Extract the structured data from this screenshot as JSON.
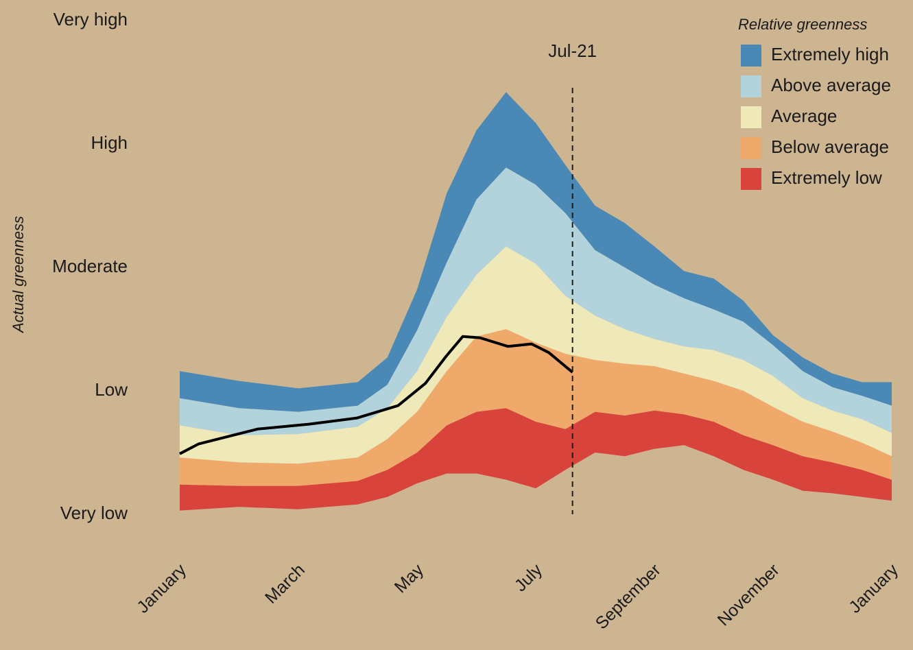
{
  "chart_data": {
    "type": "stacked_band",
    "y_label": "Actual greenness",
    "legend_title": "Relative greenness",
    "xlim": [
      0,
      12
    ],
    "ylim": [
      0,
      4
    ],
    "xticks": [
      {
        "value": 0,
        "label": "January"
      },
      {
        "value": 2,
        "label": "March"
      },
      {
        "value": 4,
        "label": "May"
      },
      {
        "value": 6,
        "label": "July"
      },
      {
        "value": 8,
        "label": "September"
      },
      {
        "value": 10,
        "label": "November"
      },
      {
        "value": 12,
        "label": "January"
      }
    ],
    "yticks": [
      {
        "value": 0,
        "label": "Very low"
      },
      {
        "value": 1,
        "label": "Low"
      },
      {
        "value": 2,
        "label": "Moderate"
      },
      {
        "value": 3,
        "label": "High"
      },
      {
        "value": 4,
        "label": "Very high"
      }
    ],
    "x": [
      0,
      1,
      2,
      3,
      3.5,
      4,
      4.5,
      5,
      5.5,
      6,
      6.5,
      7,
      7.5,
      8,
      8.5,
      9,
      9.5,
      10,
      10.5,
      11,
      11.5,
      12
    ],
    "band_floor": [
      0.03,
      0.06,
      0.04,
      0.08,
      0.14,
      0.25,
      0.33,
      0.33,
      0.28,
      0.21,
      0.36,
      0.5,
      0.47,
      0.53,
      0.56,
      0.47,
      0.36,
      0.28,
      0.19,
      0.17,
      0.14,
      0.11
    ],
    "series": [
      {
        "name": "Extremely low",
        "color": "#d8433c",
        "values": [
          0.21,
          0.17,
          0.19,
          0.19,
          0.22,
          0.25,
          0.39,
          0.5,
          0.58,
          0.54,
          0.33,
          0.33,
          0.33,
          0.31,
          0.25,
          0.28,
          0.28,
          0.28,
          0.28,
          0.25,
          0.22,
          0.17
        ]
      },
      {
        "name": "Below average",
        "color": "#efa96a",
        "values": [
          0.22,
          0.19,
          0.18,
          0.19,
          0.25,
          0.33,
          0.44,
          0.61,
          0.64,
          0.64,
          0.61,
          0.42,
          0.42,
          0.36,
          0.33,
          0.33,
          0.36,
          0.31,
          0.28,
          0.25,
          0.22,
          0.19
        ]
      },
      {
        "name": "Average",
        "color": "#efe8b8",
        "values": [
          0.26,
          0.22,
          0.24,
          0.25,
          0.25,
          0.33,
          0.44,
          0.5,
          0.67,
          0.64,
          0.47,
          0.36,
          0.28,
          0.22,
          0.22,
          0.25,
          0.25,
          0.25,
          0.19,
          0.17,
          0.19,
          0.19
        ]
      },
      {
        "name": "Above average",
        "color": "#b3d3dc",
        "values": [
          0.22,
          0.22,
          0.18,
          0.17,
          0.19,
          0.33,
          0.44,
          0.61,
          0.64,
          0.64,
          0.67,
          0.53,
          0.5,
          0.44,
          0.39,
          0.33,
          0.31,
          0.25,
          0.22,
          0.19,
          0.19,
          0.22
        ]
      },
      {
        "name": "Extremely high",
        "color": "#4a88b5",
        "values": [
          0.22,
          0.22,
          0.19,
          0.19,
          0.22,
          0.33,
          0.56,
          0.56,
          0.61,
          0.5,
          0.39,
          0.36,
          0.36,
          0.31,
          0.22,
          0.25,
          0.17,
          0.08,
          0.11,
          0.11,
          0.11,
          0.19
        ]
      }
    ],
    "line": {
      "color": "#000000",
      "x": [
        0,
        0.32,
        1.31,
        2.18,
        2.99,
        3.68,
        4.14,
        4.49,
        4.77,
        5.06,
        5.53,
        5.93,
        6.22,
        6.62
      ],
      "values": [
        0.49,
        0.57,
        0.69,
        0.73,
        0.78,
        0.88,
        1.06,
        1.28,
        1.44,
        1.43,
        1.36,
        1.38,
        1.31,
        1.15
      ]
    },
    "marker": {
      "x": 6.62,
      "label": "Jul-21"
    }
  }
}
